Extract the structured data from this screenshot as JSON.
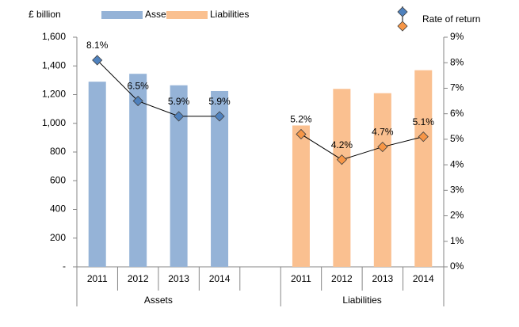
{
  "chart_data": {
    "type": "bar",
    "y_axis_label": "£ billion",
    "categories": [
      "2011",
      "2012",
      "2013",
      "2014",
      null,
      "2011",
      "2012",
      "2013",
      "2014"
    ],
    "groups": [
      {
        "label": "Assets",
        "start": 0,
        "end": 3
      },
      {
        "label": "Liabilities",
        "start": 5,
        "end": 8
      }
    ],
    "series": [
      {
        "name": "Assets",
        "color": "#95b3d7",
        "values": [
          1290,
          1345,
          1265,
          1225,
          null,
          null,
          null,
          null,
          null
        ]
      },
      {
        "name": "Liabilities",
        "color": "#fac090",
        "values": [
          null,
          null,
          null,
          null,
          null,
          985,
          1240,
          1210,
          1370
        ]
      },
      {
        "name": "Rate of return",
        "type": "line",
        "axis": "y2",
        "color": "#000000",
        "marker_colors": [
          "#4f81bd",
          "#4f81bd",
          "#4f81bd",
          "#4f81bd",
          null,
          "#f79646",
          "#f79646",
          "#f79646",
          "#f79646"
        ],
        "values": [
          8.1,
          6.5,
          5.9,
          5.9,
          null,
          5.2,
          4.2,
          4.7,
          5.1
        ],
        "value_labels": [
          "8.1%",
          "6.5%",
          "5.9%",
          "5.9%",
          null,
          "5.2%",
          "4.2%",
          "4.7%",
          "5.1%"
        ]
      }
    ],
    "ylim": [
      0,
      1600
    ],
    "yticks": [
      {
        "value": 0,
        "label": "-"
      },
      200,
      400,
      600,
      800,
      {
        "value": 1000,
        "label": "1,000"
      },
      {
        "value": 1200,
        "label": "1,200"
      },
      {
        "value": 1400,
        "label": "1,400"
      },
      {
        "value": 1600,
        "label": "1,600"
      }
    ],
    "y2lim": [
      0,
      9
    ],
    "y2ticks": [
      {
        "value": 0,
        "label": "0%"
      },
      {
        "value": 1,
        "label": "1%"
      },
      {
        "value": 2,
        "label": "2%"
      },
      {
        "value": 3,
        "label": "3%"
      },
      {
        "value": 4,
        "label": "4%"
      },
      {
        "value": 5,
        "label": "5%"
      },
      {
        "value": 6,
        "label": "6%"
      },
      {
        "value": 7,
        "label": "7%"
      },
      {
        "value": 8,
        "label": "8%"
      },
      {
        "value": 9,
        "label": "9%"
      }
    ]
  }
}
